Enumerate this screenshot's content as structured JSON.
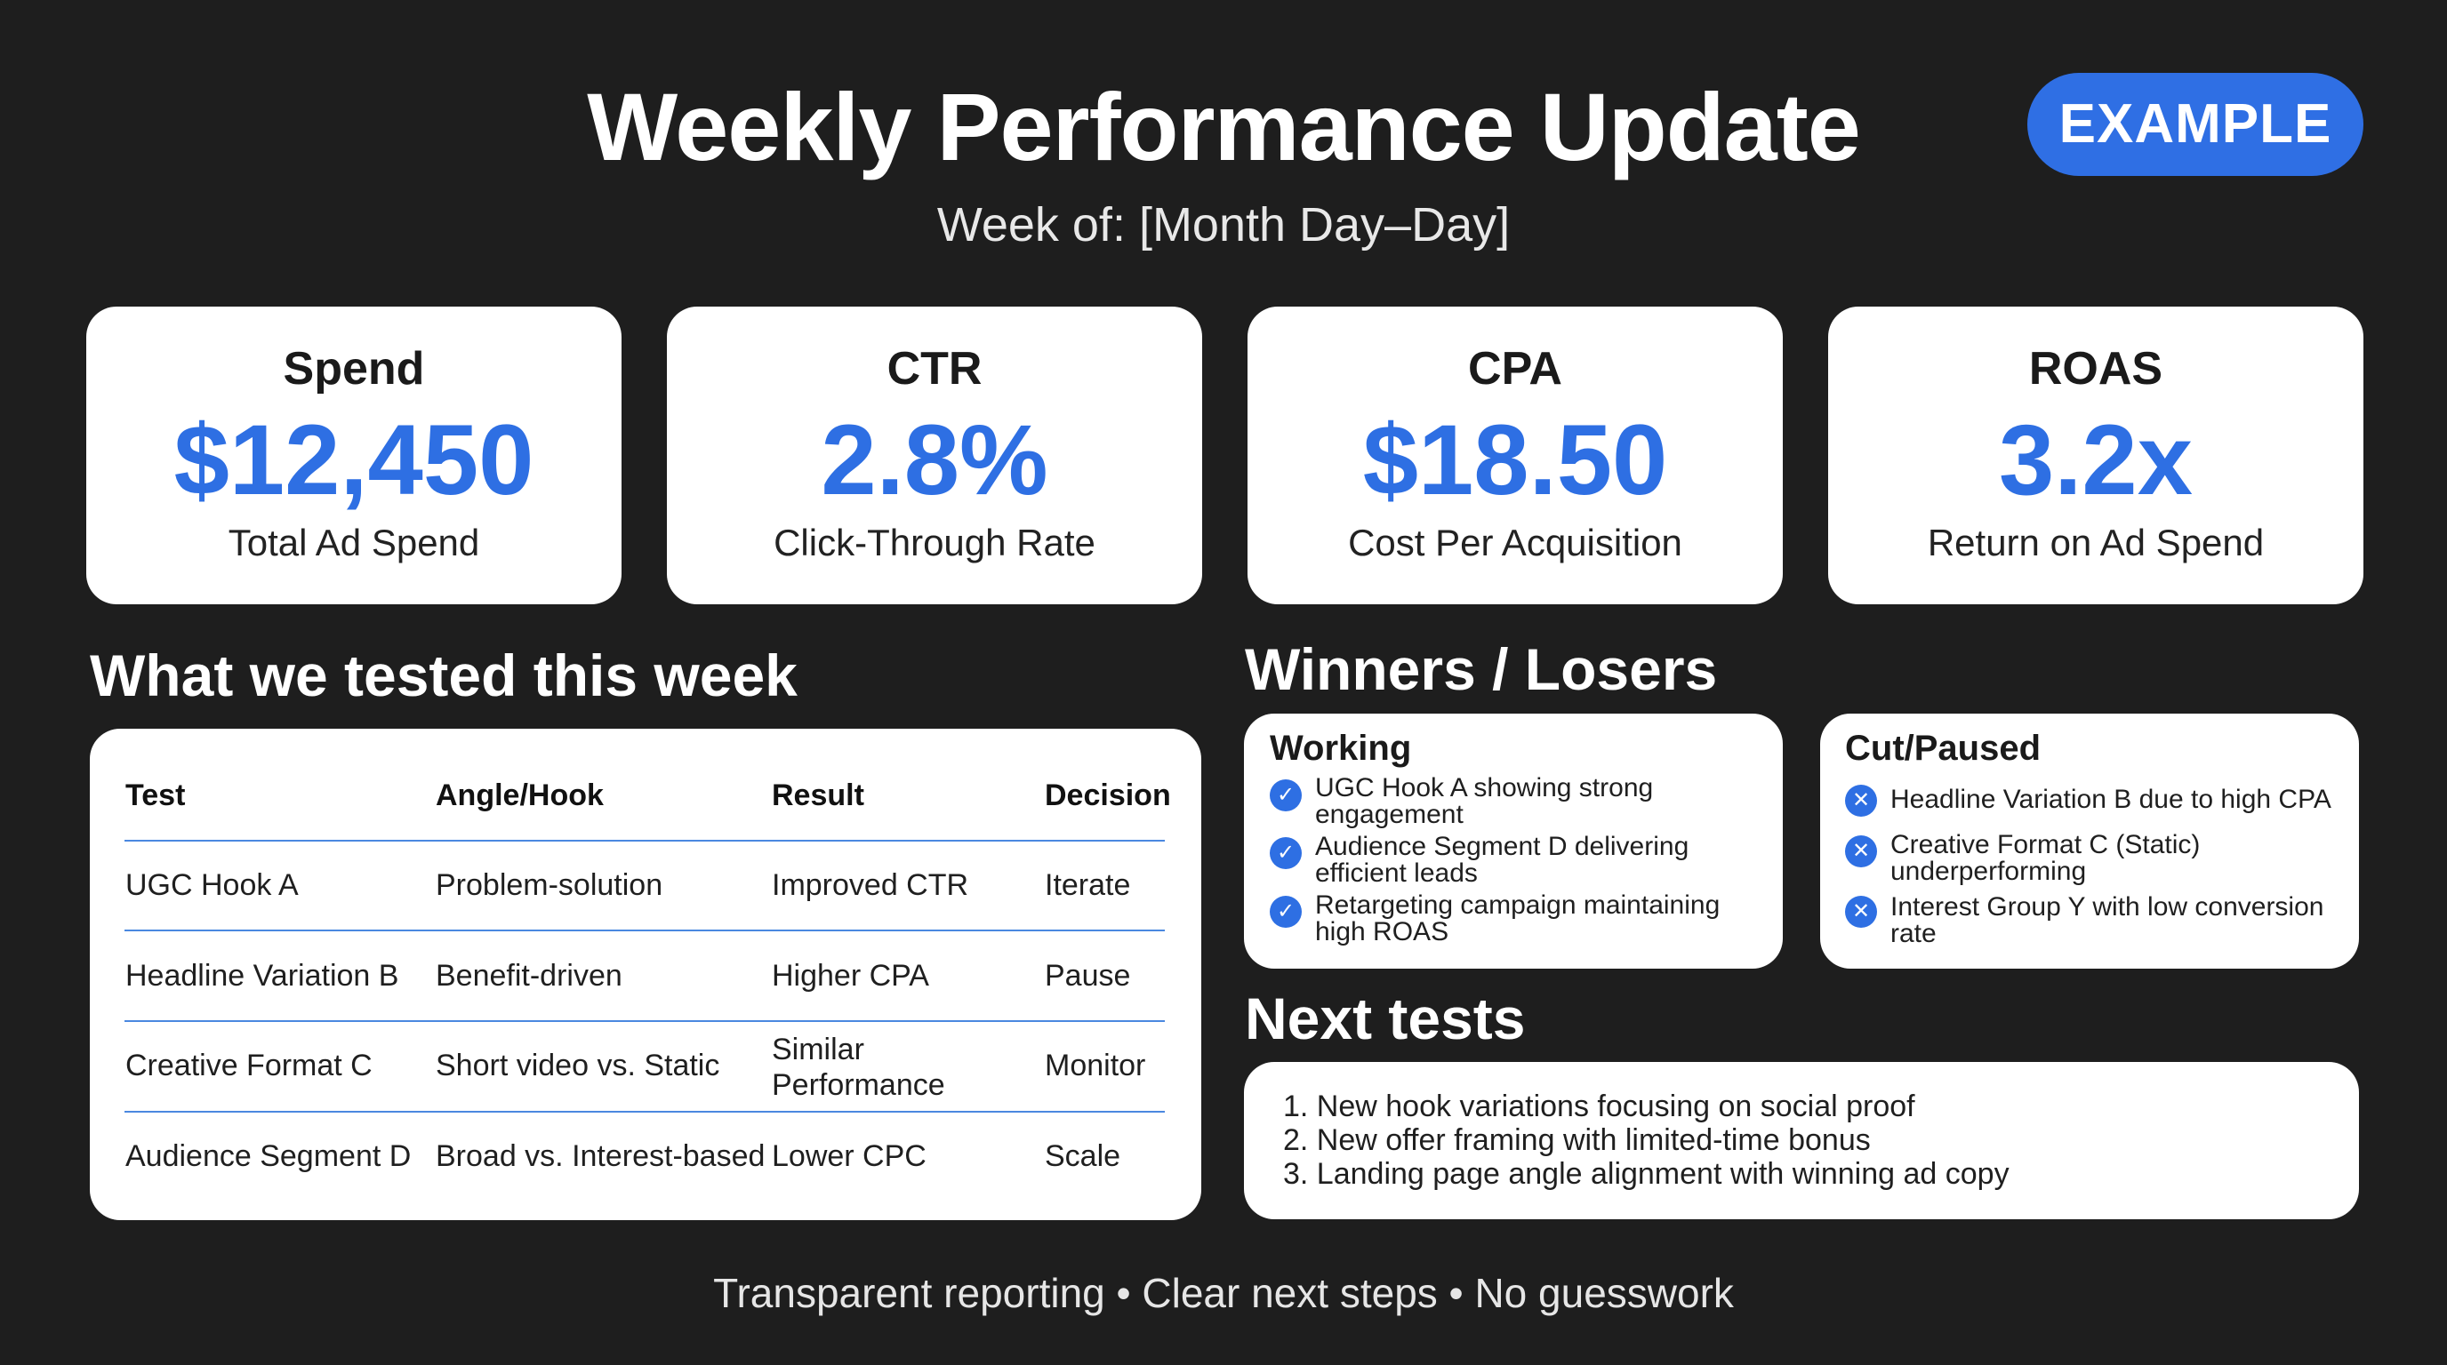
{
  "header": {
    "title": "Weekly Performance Update",
    "subtitle": "Week of: [Month Day–Day]",
    "badge": "EXAMPLE"
  },
  "kpis": [
    {
      "label": "Spend",
      "value": "$12,450",
      "desc": "Total Ad Spend"
    },
    {
      "label": "CTR",
      "value": "2.8%",
      "desc": "Click-Through Rate"
    },
    {
      "label": "CPA",
      "value": "$18.50",
      "desc": "Cost Per Acquisition"
    },
    {
      "label": "ROAS",
      "value": "3.2x",
      "desc": "Return on Ad Spend"
    }
  ],
  "tests": {
    "title": "What we tested this week",
    "headers": [
      "Test",
      "Angle/Hook",
      "Result",
      "Decision"
    ],
    "rows": [
      [
        "UGC Hook A",
        "Problem-solution",
        "Improved CTR",
        "Iterate"
      ],
      [
        "Headline Variation B",
        "Benefit-driven",
        "Higher CPA",
        "Pause"
      ],
      [
        "Creative Format C",
        "Short video vs. Static",
        "Similar Performance",
        "Monitor"
      ],
      [
        "Audience Segment D",
        "Broad vs. Interest-based",
        "Lower CPC",
        "Scale"
      ]
    ]
  },
  "winners_losers": {
    "title": "Winners / Losers",
    "working": {
      "heading": "Working",
      "items": [
        "UGC Hook A showing strong engagement",
        "Audience Segment D delivering efficient leads",
        "Retargeting campaign maintaining high ROAS"
      ]
    },
    "cut": {
      "heading": "Cut/Paused",
      "items": [
        "Headline Variation B due to high CPA",
        "Creative Format C (Static) underperforming",
        "Interest Group Y with low conversion rate"
      ]
    }
  },
  "next_tests": {
    "title": "Next tests",
    "items": [
      "1. New hook variations focusing on social proof",
      "2. New offer framing with limited-time bonus",
      "3. Landing page angle alignment with winning ad copy"
    ]
  },
  "footer": "Transparent reporting • Clear next steps • No guesswork",
  "colors": {
    "background": "#1e1e1e",
    "accent": "#2e6fe3",
    "card": "#ffffff"
  },
  "icons": {
    "working": "check-circle-icon",
    "cut": "x-circle-icon"
  }
}
